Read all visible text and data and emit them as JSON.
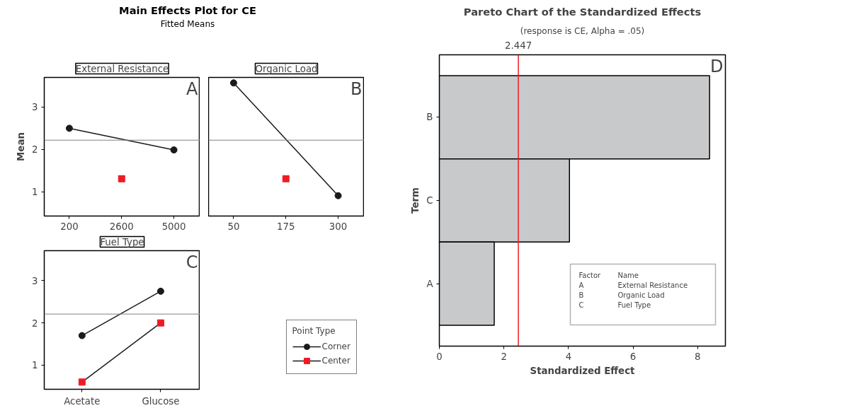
{
  "chart_data": [
    {
      "type": "line",
      "title": "Main Effects Plot for CE",
      "subtitle": "Fitted Means",
      "ylabel": "Mean",
      "xlabel": "External Resistance",
      "categories": [
        "200",
        "2600",
        "5000"
      ],
      "series": [
        {
          "color": "#1a1a1a",
          "marker": "circle",
          "values": [
            2.5,
            null,
            1.99
          ]
        },
        {
          "color": "#ed1c24",
          "marker": "square",
          "values": [
            null,
            1.31,
            null
          ]
        }
      ],
      "ylim": [
        0.43,
        3.7
      ],
      "yticks": [
        1,
        2,
        3
      ],
      "ref_lines": [
        {
          "axis": "y",
          "value": 2.22,
          "color": "#808080"
        }
      ],
      "annotations": [
        "A"
      ],
      "grid": false,
      "legend": false
    },
    {
      "type": "line",
      "xlabel": "Organic Load",
      "categories": [
        "50",
        "175",
        "300"
      ],
      "series": [
        {
          "color": "#1a1a1a",
          "marker": "circle",
          "values": [
            3.57,
            null,
            0.91
          ]
        },
        {
          "color": "#ed1c24",
          "marker": "square",
          "values": [
            null,
            1.31,
            null
          ]
        }
      ],
      "ylim": [
        0.43,
        3.7
      ],
      "yticks": [
        1,
        2,
        3
      ],
      "tick_labels": "x",
      "ref_lines": [
        {
          "axis": "y",
          "value": 2.22,
          "color": "#808080"
        }
      ],
      "annotations": [
        "B"
      ],
      "grid": false,
      "legend": false
    },
    {
      "type": "line",
      "xlabel": "Fuel Type",
      "categories": [
        "Acetate",
        "Glucose"
      ],
      "legend_title": "Point Type",
      "series": [
        {
          "name": "Corner",
          "color": "#1a1a1a",
          "marker": "circle",
          "values": [
            1.7,
            2.75
          ]
        },
        {
          "name": "Center",
          "color": "#ed1c24",
          "marker": "square",
          "values": [
            0.6,
            2.0
          ]
        }
      ],
      "ylim": [
        0.43,
        3.71
      ],
      "yticks": [
        1,
        2,
        3
      ],
      "ref_lines": [
        {
          "axis": "y",
          "value": 2.21,
          "color": "#808080"
        }
      ],
      "annotations": [
        "C"
      ],
      "grid": false,
      "legend": "right"
    },
    {
      "type": "bar",
      "orientation": "horizontal",
      "title": "Pareto Chart of the Standardized Effects",
      "subtitle": "(response is CE, Alpha = .05)",
      "xlabel": "Standardized Effect",
      "ylabel": "Term",
      "categories": [
        "B",
        "C",
        "A"
      ],
      "values": [
        8.37,
        4.03,
        1.7
      ],
      "color": "#c8c9cb",
      "xlim": [
        0,
        8.86
      ],
      "xticks": [
        0,
        2,
        4,
        6,
        8
      ],
      "ref_lines": [
        {
          "axis": "x",
          "value": 2.447,
          "label": "2.447",
          "color": "#ed1c24"
        }
      ],
      "annotations": [
        "D",
        "Factor Name",
        "A External Resistance",
        "B Organic Load",
        "C Fuel Type"
      ],
      "grid": false,
      "legend": false
    }
  ]
}
